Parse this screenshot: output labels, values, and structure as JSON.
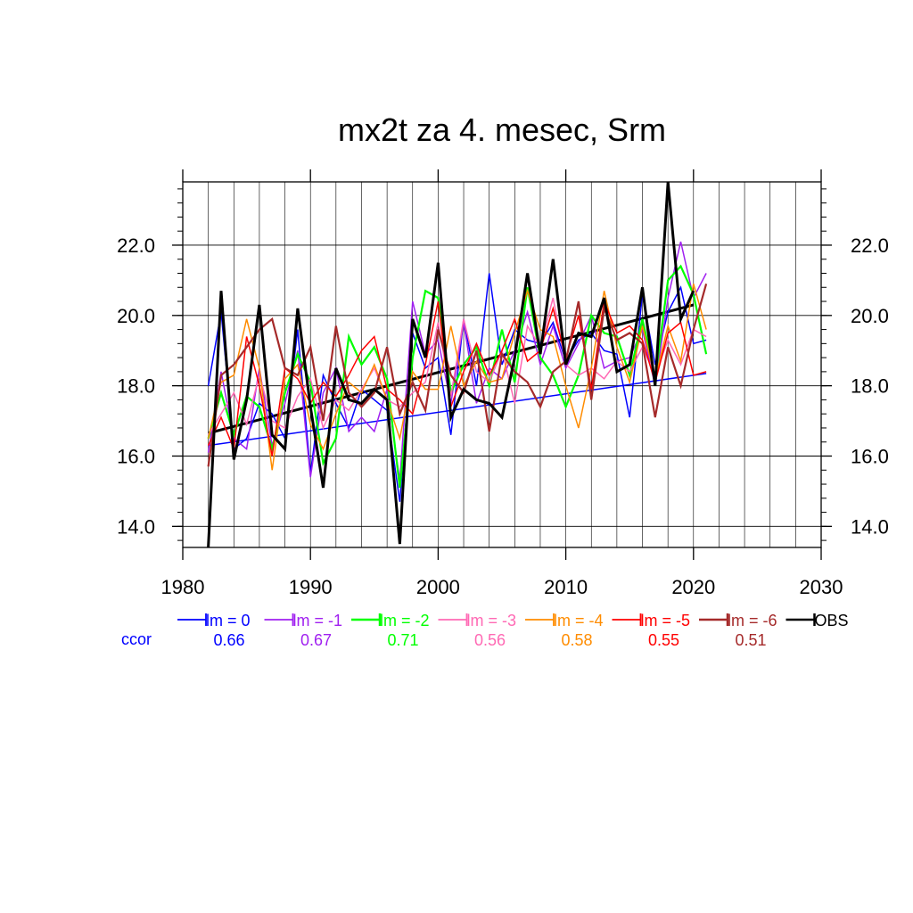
{
  "chart_data": {
    "type": "line",
    "title": "mx2t za 4. mesec, Srm",
    "xlabel": "",
    "ylabel": "",
    "xlim": [
      1980,
      2030
    ],
    "ylim": [
      13.4,
      23.8
    ],
    "x_ticks": [
      1980,
      1990,
      2000,
      2010,
      2020,
      2030
    ],
    "x_tick_labels": [
      "1980",
      "1990",
      "2000",
      "2010",
      "2020",
      "2030"
    ],
    "y_ticks": [
      14,
      16,
      18,
      20,
      22
    ],
    "y_tick_labels": [
      "14.0",
      "16.0",
      "18.0",
      "20.0",
      "22.0"
    ],
    "grid": true,
    "legend_position": "bottom",
    "ccor_label": "ccor",
    "series": [
      {
        "name": "lm = 0",
        "color": "#0000ff",
        "ccor": "0.66",
        "width": 1.5,
        "x": [
          1982,
          1983,
          1984,
          1985,
          1986,
          1987,
          1988,
          1989,
          1990,
          1991,
          1992,
          1993,
          1994,
          1995,
          1996,
          1997,
          1998,
          1999,
          2000,
          2001,
          2002,
          2003,
          2004,
          2005,
          2006,
          2007,
          2008,
          2009,
          2010,
          2011,
          2012,
          2013,
          2014,
          2015,
          2016,
          2017,
          2018,
          2019,
          2020,
          2021
        ],
        "values": [
          18.0,
          20.1,
          16.2,
          16.5,
          17.5,
          17.2,
          16.5,
          19.6,
          15.5,
          18.3,
          17.5,
          16.8,
          17.9,
          17.6,
          17.3,
          14.7,
          19.5,
          18.5,
          18.8,
          16.6,
          19.9,
          18.0,
          21.2,
          18.6,
          19.6,
          19.3,
          19.2,
          19.8,
          18.7,
          19.3,
          19.5,
          19.0,
          18.9,
          17.1,
          20.6,
          18.6,
          20.1,
          20.8,
          19.2,
          19.3
        ]
      },
      {
        "name": "lm = -1",
        "color": "#a020f0",
        "ccor": "0.67",
        "width": 1.5,
        "x": [
          1982,
          1983,
          1984,
          1985,
          1986,
          1987,
          1988,
          1989,
          1990,
          1991,
          1992,
          1993,
          1994,
          1995,
          1996,
          1997,
          1998,
          1999,
          2000,
          2001,
          2002,
          2003,
          2004,
          2005,
          2006,
          2007,
          2008,
          2009,
          2010,
          2011,
          2012,
          2013,
          2014,
          2015,
          2016,
          2017,
          2018,
          2019,
          2020,
          2021
        ],
        "values": [
          16.1,
          18.4,
          16.5,
          16.2,
          18.5,
          16.3,
          17.5,
          19.0,
          15.4,
          17.8,
          18.5,
          16.7,
          17.1,
          16.7,
          17.9,
          15.3,
          20.4,
          18.9,
          19.3,
          17.5,
          19.8,
          17.5,
          18.5,
          18.2,
          19.0,
          20.1,
          18.6,
          19.7,
          18.5,
          19.2,
          20.0,
          18.5,
          18.7,
          18.8,
          19.6,
          18.0,
          20.5,
          22.1,
          20.5,
          21.2
        ]
      },
      {
        "name": "lm = -2",
        "color": "#00ff00",
        "ccor": "0.71",
        "width": 2.2,
        "x": [
          1982,
          1983,
          1984,
          1985,
          1986,
          1987,
          1988,
          1989,
          1990,
          1991,
          1992,
          1993,
          1994,
          1995,
          1996,
          1997,
          1998,
          1999,
          2000,
          2001,
          2002,
          2003,
          2004,
          2005,
          2006,
          2007,
          2008,
          2009,
          2010,
          2011,
          2012,
          2013,
          2014,
          2015,
          2016,
          2017,
          2018,
          2019,
          2020,
          2021
        ],
        "values": [
          16.5,
          17.8,
          16.6,
          17.7,
          17.4,
          16.2,
          17.8,
          18.9,
          18.1,
          15.8,
          16.5,
          19.4,
          18.6,
          19.1,
          18.2,
          15.1,
          18.8,
          20.7,
          20.5,
          17.8,
          18.6,
          19.1,
          18.0,
          19.6,
          18.1,
          20.8,
          18.8,
          18.3,
          17.4,
          18.3,
          20.0,
          19.5,
          19.4,
          18.3,
          19.9,
          18.2,
          21.0,
          21.4,
          20.6,
          18.9
        ]
      },
      {
        "name": "lm = -3",
        "color": "#ff69b4",
        "ccor": "0.56",
        "width": 1.5,
        "x": [
          1982,
          1983,
          1984,
          1985,
          1986,
          1987,
          1988,
          1989,
          1990,
          1991,
          1992,
          1993,
          1994,
          1995,
          1996,
          1997,
          1998,
          1999,
          2000,
          2001,
          2002,
          2003,
          2004,
          2005,
          2006,
          2007,
          2008,
          2009,
          2010,
          2011,
          2012,
          2013,
          2014,
          2015,
          2016,
          2017,
          2018,
          2019,
          2020,
          2021
        ],
        "values": [
          16.6,
          17.2,
          17.8,
          16.9,
          18.3,
          17.0,
          16.8,
          17.7,
          18.2,
          16.8,
          17.6,
          17.3,
          17.9,
          18.5,
          17.6,
          17.4,
          17.8,
          18.1,
          19.8,
          17.7,
          19.9,
          18.4,
          18.1,
          19.0,
          17.5,
          19.7,
          19.1,
          20.5,
          18.6,
          18.3,
          18.5,
          18.2,
          18.7,
          18.4,
          19.1,
          18.3,
          19.3,
          18.6,
          19.6,
          19.4
        ]
      },
      {
        "name": "lm = -4",
        "color": "#ff8c00",
        "ccor": "0.58",
        "width": 1.5,
        "x": [
          1982,
          1983,
          1984,
          1985,
          1986,
          1987,
          1988,
          1989,
          1990,
          1991,
          1992,
          1993,
          1994,
          1995,
          1996,
          1997,
          1998,
          1999,
          2000,
          2001,
          2002,
          2003,
          2004,
          2005,
          2006,
          2007,
          2008,
          2009,
          2010,
          2011,
          2012,
          2013,
          2014,
          2015,
          2016,
          2017,
          2018,
          2019,
          2020,
          2021
        ],
        "values": [
          16.5,
          18.1,
          18.3,
          19.9,
          18.5,
          15.6,
          18.2,
          18.6,
          16.9,
          16.2,
          17.2,
          18.1,
          17.8,
          18.6,
          17.6,
          16.5,
          18.4,
          17.9,
          17.9,
          19.7,
          18.0,
          18.7,
          18.1,
          18.2,
          19.5,
          20.7,
          19.6,
          19.4,
          18.0,
          16.8,
          18.5,
          20.7,
          19.1,
          18.1,
          19.7,
          18.2,
          19.7,
          18.7,
          20.9,
          19.6
        ]
      },
      {
        "name": "lm = -5",
        "color": "#ff0000",
        "ccor": "0.55",
        "width": 1.5,
        "x": [
          1982,
          1983,
          1984,
          1985,
          1986,
          1987,
          1988,
          1989,
          1990,
          1991,
          1992,
          1993,
          1994,
          1995,
          1996,
          1997,
          1998,
          1999,
          2000,
          2001,
          2002,
          2003,
          2004,
          2005,
          2006,
          2007,
          2008,
          2009,
          2010,
          2011,
          2012,
          2013,
          2014,
          2015,
          2016,
          2017,
          2018,
          2019,
          2020,
          2021
        ],
        "values": [
          16.3,
          17.1,
          16.2,
          19.4,
          18.0,
          16.0,
          18.5,
          18.2,
          17.5,
          18.1,
          17.7,
          18.3,
          19.0,
          19.4,
          17.9,
          17.6,
          17.2,
          18.6,
          20.4,
          17.4,
          18.4,
          19.2,
          18.3,
          19.0,
          19.9,
          18.7,
          19.0,
          20.2,
          18.8,
          20.0,
          17.9,
          20.4,
          19.5,
          19.7,
          19.3,
          18.1,
          19.5,
          19.8,
          18.3,
          18.4
        ]
      },
      {
        "name": "lm = -6",
        "color": "#a52a2a",
        "ccor": "0.51",
        "width": 2.2,
        "x": [
          1982,
          1983,
          1984,
          1985,
          1986,
          1987,
          1988,
          1989,
          1990,
          1991,
          1992,
          1993,
          1994,
          1995,
          1996,
          1997,
          1998,
          1999,
          2000,
          2001,
          2002,
          2003,
          2004,
          2005,
          2006,
          2007,
          2008,
          2009,
          2010,
          2011,
          2012,
          2013,
          2014,
          2015,
          2016,
          2017,
          2018,
          2019,
          2020,
          2021
        ],
        "values": [
          15.7,
          18.3,
          18.6,
          19.1,
          19.6,
          19.9,
          18.5,
          18.3,
          19.1,
          17.0,
          19.7,
          17.8,
          17.4,
          17.8,
          19.1,
          17.2,
          18.1,
          17.3,
          19.6,
          18.3,
          17.8,
          19.0,
          16.7,
          18.9,
          18.4,
          18.1,
          17.4,
          18.4,
          18.7,
          20.4,
          17.6,
          20.2,
          19.3,
          19.5,
          19.2,
          17.1,
          19.1,
          18.0,
          19.6,
          20.9
        ]
      },
      {
        "name": "OBS",
        "color": "#000000",
        "ccor": "",
        "width": 3,
        "x": [
          1982,
          1983,
          1984,
          1985,
          1986,
          1987,
          1988,
          1989,
          1990,
          1991,
          1992,
          1993,
          1994,
          1995,
          1996,
          1997,
          1998,
          1999,
          2000,
          2001,
          2002,
          2003,
          2004,
          2005,
          2006,
          2007,
          2008,
          2009,
          2010,
          2011,
          2012,
          2013,
          2014,
          2015,
          2016,
          2017,
          2018,
          2019,
          2020,
          2021
        ],
        "values": [
          13.4,
          20.7,
          15.9,
          17.6,
          20.3,
          16.6,
          16.2,
          20.2,
          17.4,
          15.1,
          18.5,
          17.6,
          17.5,
          17.9,
          17.6,
          13.5,
          19.9,
          18.8,
          21.5,
          17.1,
          17.9,
          17.6,
          17.5,
          17.1,
          18.8,
          21.2,
          18.9,
          21.6,
          18.6,
          19.5,
          19.4,
          20.5,
          18.4,
          18.6,
          20.8,
          18.0,
          23.8,
          19.9,
          20.7,
          null
        ]
      }
    ],
    "trend_lines": [
      {
        "color": "#0000ff",
        "width": 1.5,
        "x": [
          1982,
          2021
        ],
        "values": [
          16.3,
          18.35
        ]
      },
      {
        "color": "#000000",
        "width": 3,
        "x": [
          1982,
          2020
        ],
        "values": [
          16.65,
          20.3
        ]
      }
    ]
  }
}
